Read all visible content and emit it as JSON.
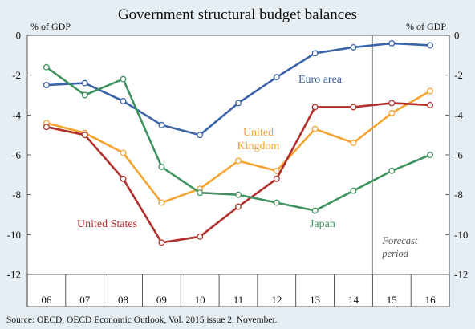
{
  "chart_data": {
    "type": "line",
    "title": "Government structural budget balances",
    "ylabel_left": "% of GDP",
    "ylabel_right": "% of GDP",
    "ylim": [
      -12,
      0
    ],
    "yticks": [
      0,
      -2,
      -4,
      -6,
      -8,
      -10,
      -12
    ],
    "categories": [
      "06",
      "07",
      "08",
      "09",
      "10",
      "11",
      "12",
      "13",
      "14",
      "15",
      "16"
    ],
    "forecast_label_lines": [
      "Forecast",
      "period"
    ],
    "forecast_from_index": 9,
    "grid": false,
    "series": [
      {
        "name": "Euro area",
        "label_lines": [
          "Euro area"
        ],
        "color": "#3a63a8",
        "values": [
          -2.5,
          -2.4,
          -3.3,
          -4.5,
          -5.0,
          -3.4,
          -2.1,
          -0.9,
          -0.6,
          -0.4,
          -0.5
        ]
      },
      {
        "name": "United Kingdom",
        "label_lines": [
          "United",
          "Kingdom"
        ],
        "color": "#f5a331",
        "values": [
          -4.4,
          -4.9,
          -5.9,
          -8.4,
          -7.7,
          -6.3,
          -6.8,
          -4.7,
          -5.4,
          -3.9,
          -2.8
        ]
      },
      {
        "name": "United States",
        "label_lines": [
          "United States"
        ],
        "color": "#b0302c",
        "values": [
          -4.6,
          -5.0,
          -7.2,
          -10.4,
          -10.1,
          -8.6,
          -7.2,
          -3.6,
          -3.6,
          -3.4,
          -3.5
        ]
      },
      {
        "name": "Japan",
        "label_lines": [
          "Japan"
        ],
        "color": "#3f9360",
        "values": [
          -1.6,
          -3.0,
          -2.2,
          -6.6,
          -7.9,
          -8.0,
          -8.4,
          -8.8,
          -7.8,
          -6.8,
          -6.0
        ]
      }
    ],
    "source": "Source: OECD, OECD Economic Outlook, Vol. 2015 issue 2, November."
  }
}
